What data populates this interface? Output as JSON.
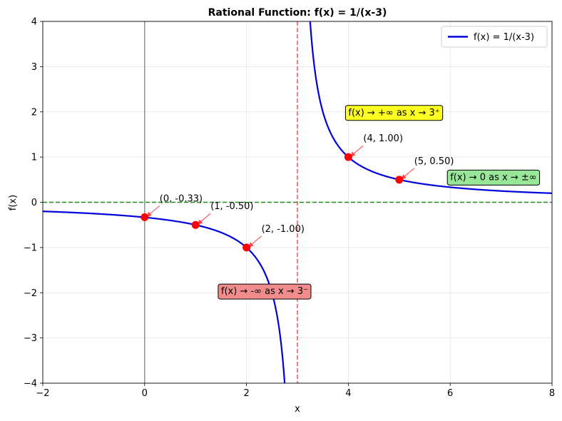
{
  "chart_data": {
    "type": "line",
    "title": "Rational Function: f(x) = 1/(x-3)",
    "xlabel": "x",
    "ylabel": "f(x)",
    "xlim": [
      -2,
      8
    ],
    "ylim": [
      -4,
      4
    ],
    "x_ticks": [
      -2,
      0,
      2,
      4,
      6,
      8
    ],
    "y_ticks": [
      -4,
      -3,
      -2,
      -1,
      0,
      1,
      2,
      3,
      4
    ],
    "grid": true,
    "legend": {
      "placement": "top-right",
      "entries": [
        "f(x) = 1/(x-3)"
      ]
    },
    "series": [
      {
        "name": "f(x) = 1/(x-3)",
        "function": "1/(x-3)",
        "color": "#0000dd"
      }
    ],
    "asymptotes": {
      "vertical_x": 3,
      "horizontal_y": 0
    },
    "points": [
      {
        "x": 0,
        "y": -0.33,
        "label": "(0, -0.33)"
      },
      {
        "x": 1,
        "y": -0.5,
        "label": "(1, -0.50)"
      },
      {
        "x": 2,
        "y": -1.0,
        "label": "(2, -1.00)"
      },
      {
        "x": 4,
        "y": 1.0,
        "label": "(4, 1.00)"
      },
      {
        "x": 5,
        "y": 0.5,
        "label": "(5, 0.50)"
      }
    ],
    "annotations": [
      {
        "text": "f(x) → +∞ as x → 3⁺",
        "x": 4,
        "y": 2,
        "bg": "#ffff22"
      },
      {
        "text": "f(x) → -∞ as x → 3⁻",
        "x": 1.5,
        "y": -1.95,
        "bg": "#f08c8c"
      },
      {
        "text": "f(x) → 0 as x → ±∞",
        "x": 6,
        "y": 0.57,
        "bg": "#98e698"
      }
    ],
    "colors": {
      "curve": "#0000dd",
      "vertical_asymptote": "#ff3333",
      "horizontal_asymptote": "#228b22",
      "points": "#ff0000",
      "y_axis": "#808080"
    }
  }
}
